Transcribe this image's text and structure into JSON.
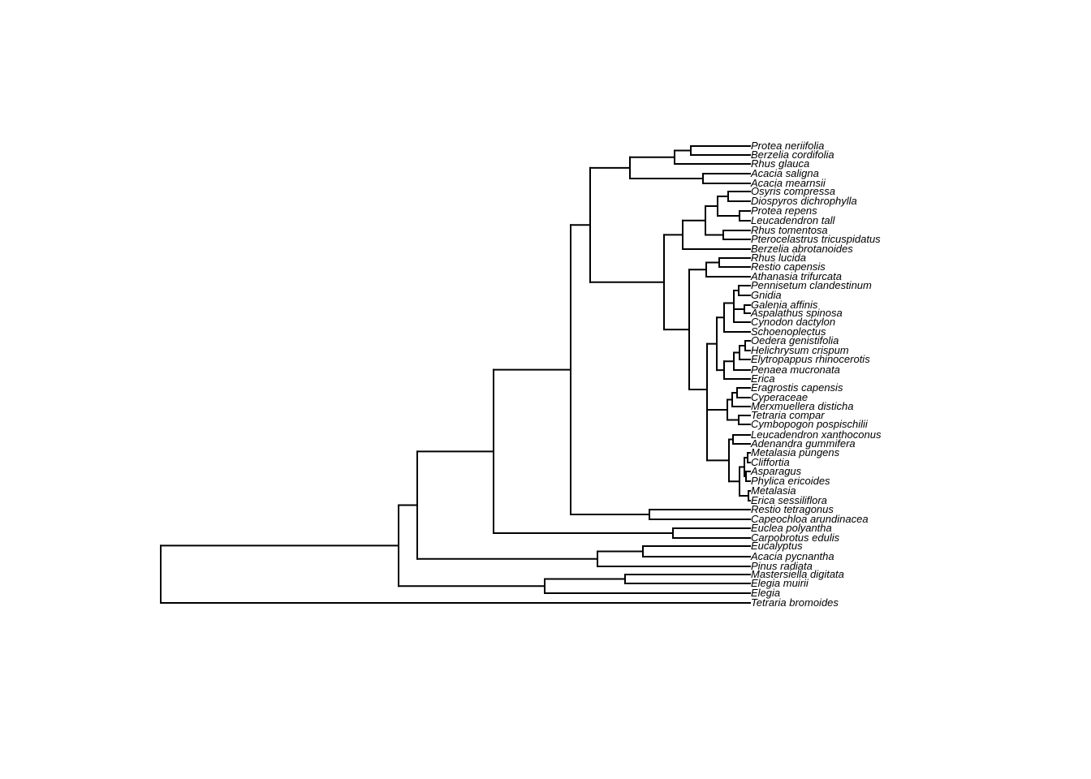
{
  "colors": {
    "branch": "#000000",
    "background": "#ffffff"
  },
  "tips": [
    "Protea neriifolia",
    "Berzelia cordifolia",
    "Rhus glauca",
    "Acacia saligna",
    "Acacia mearnsii",
    "Osyris compressa",
    "Diospyros dichrophylla",
    "Protea repens",
    "Leucadendron tall",
    "Rhus tomentosa",
    "Pterocelastrus tricuspidatus",
    "Berzelia abrotanoides",
    "Rhus lucida",
    "Restio capensis",
    "Athanasia trifurcata",
    "Pennisetum clandestinum",
    "Gnidia",
    "Galenia affinis",
    "Aspalathus spinosa",
    "Cynodon dactylon",
    "Schoenoplectus",
    "Oedera genistifolia",
    "Helichrysum crispum",
    "Elytropappus rhinocerotis",
    "Penaea mucronata",
    "Erica",
    "Eragrostis capensis",
    "Cyperaceae",
    "Merxmuellera disticha",
    "Tetraria compar",
    "Cymbopogon pospischilii",
    "Leucadendron xanthoconus",
    "Adenandra gummifera",
    "Metalasia pungens",
    "Cliffortia",
    "Asparagus",
    "Phylica ericoides",
    "Metalasia",
    "Erica sessiliflora",
    "Restio tetragonus",
    "Capeochloa arundinacea",
    "Euclea polyantha",
    "Carpobrotus edulis",
    "Eucalyptus",
    "Acacia pycnantha",
    "Pinus radiata",
    "Mastersiella digitata",
    "Elegia muirii",
    "Elegia",
    "Tetraria bromoides"
  ]
}
